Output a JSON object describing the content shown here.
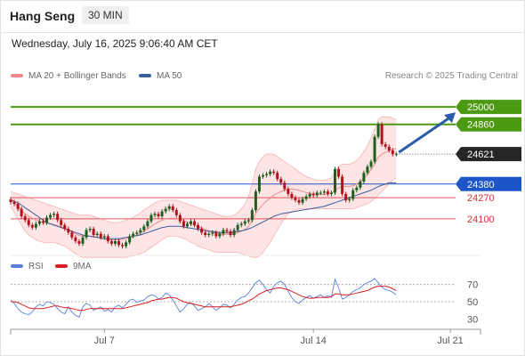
{
  "header": {
    "symbol": "Hang Seng",
    "interval": "30 MIN",
    "timestamp": "Wednesday, July 16, 2025 9:06:40 AM CET",
    "copyright": "Research © 2025 Trading Central"
  },
  "colors": {
    "bollinger": "#f08a8a",
    "ma50": "#3a5fa0",
    "band_fill": "#fde1e1",
    "up_candle": "#1f5e1f",
    "down_candle": "#b0131b",
    "target": "#4c9a12",
    "pivot": "#1c55c8",
    "support": "#e0303a",
    "arrow": "#2a5ca8",
    "rsi": "#5b7fd6",
    "rsi_ma": "#d81e1e"
  },
  "chart_data": [
    {
      "type": "candlestick",
      "title": "",
      "legend": [
        {
          "name": "MA 20 + Bollinger Bands",
          "color": "#f08a8a"
        },
        {
          "name": "MA 50",
          "color": "#3a5fa0"
        }
      ],
      "ylim": [
        23820,
        25180
      ],
      "x_ticks": [
        {
          "label": "Jul 7",
          "index": 26
        },
        {
          "label": "Jul 14",
          "index": 84
        },
        {
          "label": "Jul 21",
          "index": 122
        }
      ],
      "levels": [
        {
          "label": "25000",
          "value": 25000,
          "kind": "target"
        },
        {
          "label": "24860",
          "value": 24860,
          "kind": "target"
        },
        {
          "label": "24621",
          "value": 24621,
          "kind": "last"
        },
        {
          "label": "24380",
          "value": 24380,
          "kind": "pivot"
        },
        {
          "label": "24270",
          "value": 24270,
          "kind": "support"
        },
        {
          "label": "24100",
          "value": 24100,
          "kind": "support"
        }
      ],
      "close": [
        24235,
        24220,
        24180,
        24120,
        24090,
        24050,
        24030,
        24060,
        24080,
        24070,
        24110,
        24130,
        24140,
        24090,
        24050,
        24020,
        23990,
        23950,
        23920,
        23900,
        23950,
        24010,
        24020,
        23970,
        23980,
        23950,
        23960,
        23920,
        23900,
        23920,
        23890,
        23880,
        23910,
        23960,
        23980,
        23990,
        24010,
        24040,
        24080,
        24130,
        24140,
        24120,
        24160,
        24180,
        24200,
        24170,
        24130,
        24080,
        24040,
        24060,
        24080,
        24050,
        24020,
        23990,
        23970,
        23980,
        23990,
        23960,
        23980,
        24010,
        24000,
        23970,
        24010,
        24050,
        24060,
        24080,
        24090,
        24170,
        24320,
        24440,
        24450,
        24460,
        24480,
        24470,
        24420,
        24390,
        24340,
        24300,
        24270,
        24250,
        24230,
        24260,
        24280,
        24300,
        24290,
        24310,
        24310,
        24320,
        24300,
        24310,
        24500,
        24440,
        24300,
        24250,
        24260,
        24330,
        24350,
        24400,
        24470,
        24520,
        24560,
        24760,
        24860,
        24700,
        24680,
        24650,
        24620,
        24621
      ],
      "bollinger_upper": [
        24320,
        24310,
        24300,
        24290,
        24280,
        24270,
        24260,
        24250,
        24240,
        24230,
        24220,
        24210,
        24200,
        24190,
        24180,
        24170,
        24160,
        24150,
        24140,
        24130,
        24130,
        24130,
        24130,
        24120,
        24110,
        24100,
        24090,
        24080,
        24070,
        24070,
        24070,
        24080,
        24090,
        24100,
        24110,
        24130,
        24150,
        24170,
        24190,
        24210,
        24230,
        24240,
        24250,
        24250,
        24250,
        24250,
        24250,
        24240,
        24230,
        24220,
        24210,
        24200,
        24190,
        24180,
        24170,
        24160,
        24150,
        24140,
        24130,
        24120,
        24120,
        24120,
        24130,
        24150,
        24180,
        24220,
        24280,
        24380,
        24500,
        24560,
        24600,
        24620,
        24620,
        24620,
        24600,
        24580,
        24560,
        24540,
        24520,
        24500,
        24480,
        24460,
        24440,
        24430,
        24420,
        24410,
        24410,
        24410,
        24420,
        24430,
        24480,
        24520,
        24540,
        24540,
        24540,
        24550,
        24570,
        24600,
        24640,
        24690,
        24750,
        24820,
        24900,
        24920,
        24920,
        24920,
        24910,
        24900
      ],
      "bollinger_lower": [
        24200,
        24150,
        24100,
        24050,
        24000,
        23970,
        23950,
        23930,
        23920,
        23910,
        23910,
        23910,
        23910,
        23900,
        23890,
        23880,
        23860,
        23840,
        23820,
        23800,
        23790,
        23790,
        23790,
        23790,
        23790,
        23790,
        23790,
        23790,
        23790,
        23790,
        23790,
        23790,
        23790,
        23800,
        23800,
        23810,
        23820,
        23830,
        23850,
        23870,
        23890,
        23910,
        23930,
        23950,
        23960,
        23960,
        23960,
        23950,
        23940,
        23930,
        23910,
        23900,
        23880,
        23870,
        23860,
        23850,
        23840,
        23830,
        23830,
        23830,
        23830,
        23830,
        23830,
        23830,
        23820,
        23810,
        23800,
        23790,
        23790,
        23800,
        23830,
        23870,
        23910,
        23960,
        24010,
        24060,
        24100,
        24140,
        24160,
        24170,
        24180,
        24180,
        24180,
        24180,
        24180,
        24180,
        24180,
        24180,
        24180,
        24180,
        24180,
        24180,
        24180,
        24180,
        24180,
        24180,
        24190,
        24200,
        24210,
        24220,
        24240,
        24260,
        24290,
        24320,
        24350,
        24380,
        24410,
        24430
      ],
      "ma50": [
        24250,
        24240,
        24230,
        24210,
        24190,
        24170,
        24150,
        24130,
        24110,
        24090,
        24070,
        24060,
        24050,
        24040,
        24030,
        24020,
        24010,
        24000,
        23990,
        23980,
        23970,
        23965,
        23960,
        23955,
        23950,
        23945,
        23940,
        23940,
        23940,
        23940,
        23940,
        23945,
        23950,
        23955,
        23960,
        23965,
        23970,
        23980,
        23990,
        24000,
        24010,
        24020,
        24030,
        24035,
        24040,
        24040,
        24040,
        24040,
        24035,
        24030,
        24025,
        24020,
        24015,
        24010,
        24005,
        24000,
        24000,
        23995,
        23990,
        23990,
        23990,
        23990,
        23995,
        24000,
        24005,
        24010,
        24020,
        24030,
        24045,
        24060,
        24075,
        24090,
        24105,
        24120,
        24130,
        24140,
        24145,
        24150,
        24155,
        24160,
        24165,
        24170,
        24175,
        24180,
        24185,
        24190,
        24195,
        24200,
        24210,
        24220,
        24230,
        24240,
        24250,
        24260,
        24270,
        24280,
        24290,
        24300,
        24310,
        24320,
        24330,
        24345,
        24360,
        24370,
        24380,
        24390,
        24390,
        24390
      ]
    },
    {
      "type": "line",
      "title": "",
      "legend": [
        {
          "name": "RSI",
          "color": "#5b7fd6"
        },
        {
          "name": "9MA",
          "color": "#d81e1e"
        }
      ],
      "ylim": [
        20,
        80
      ],
      "y_ticks": [
        70,
        50,
        30
      ],
      "rsi": [
        52,
        48,
        42,
        38,
        36,
        35,
        38,
        44,
        47,
        45,
        50,
        49,
        47,
        42,
        38,
        36,
        44,
        38,
        34,
        32,
        44,
        48,
        46,
        40,
        42,
        44,
        39,
        41,
        38,
        44,
        46,
        43,
        47,
        52,
        53,
        49,
        51,
        52,
        56,
        58,
        57,
        53,
        55,
        60,
        58,
        52,
        45,
        38,
        42,
        47,
        49,
        45,
        40,
        42,
        44,
        48,
        44,
        40,
        43,
        47,
        46,
        43,
        47,
        52,
        55,
        56,
        60,
        66,
        72,
        75,
        70,
        64,
        60,
        68,
        72,
        74,
        70,
        62,
        55,
        50,
        48,
        52,
        55,
        57,
        54,
        56,
        58,
        55,
        57,
        55,
        76,
        66,
        53,
        55,
        58,
        62,
        64,
        66,
        70,
        72,
        74,
        77,
        72,
        67,
        64,
        63,
        61,
        58
      ],
      "rsi_ma": [
        50,
        50,
        49,
        47,
        45,
        43,
        42,
        42,
        42,
        42,
        43,
        44,
        45,
        45,
        44,
        43,
        43,
        42,
        41,
        40,
        40,
        41,
        42,
        42,
        42,
        42,
        42,
        42,
        42,
        42,
        42,
        42,
        43,
        44,
        45,
        46,
        47,
        48,
        49,
        51,
        52,
        53,
        53,
        54,
        55,
        55,
        54,
        52,
        50,
        49,
        48,
        47,
        46,
        45,
        44,
        44,
        44,
        44,
        44,
        44,
        44,
        44,
        45,
        46,
        47,
        49,
        51,
        53,
        56,
        59,
        61,
        63,
        64,
        65,
        66,
        66,
        65,
        64,
        62,
        60,
        58,
        56,
        55,
        54,
        54,
        55,
        55,
        55,
        55,
        56,
        59,
        59,
        58,
        58,
        58,
        59,
        60,
        61,
        62,
        63,
        65,
        67,
        68,
        68,
        68,
        67,
        65,
        63
      ]
    }
  ]
}
